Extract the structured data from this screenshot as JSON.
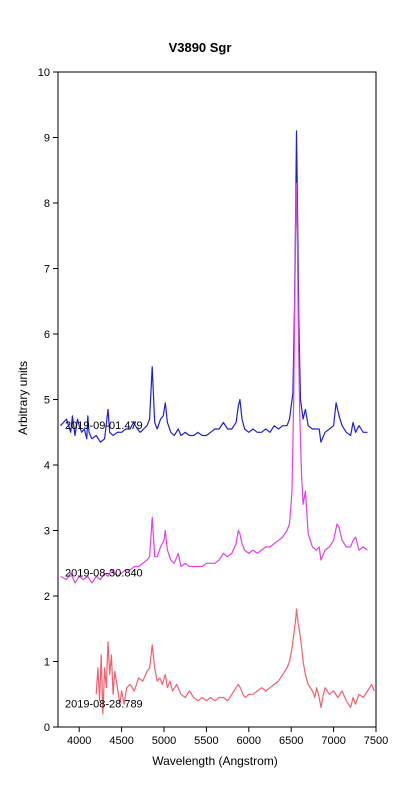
{
  "chart_data": {
    "type": "line",
    "title": "V3890 Sgr",
    "xlabel": "Wavelength (Angstrom)",
    "ylabel": "Arbitrary units",
    "xlim": [
      3750,
      7500
    ],
    "ylim": [
      0,
      10
    ],
    "x_ticks": [
      4000,
      4500,
      5000,
      5500,
      6000,
      6500,
      7000,
      7500
    ],
    "y_ticks": [
      0,
      1,
      2,
      3,
      4,
      5,
      6,
      7,
      8,
      9,
      10
    ],
    "grid": false,
    "legend": "none",
    "series": [
      {
        "name": "2019-09-01.479",
        "color": "#1f1fd6",
        "x": [
          3780,
          3850,
          3900,
          3920,
          3950,
          3980,
          4000,
          4030,
          4060,
          4090,
          4101,
          4115,
          4150,
          4200,
          4250,
          4300,
          4340,
          4360,
          4400,
          4450,
          4500,
          4550,
          4600,
          4640,
          4686,
          4720,
          4760,
          4800,
          4830,
          4861,
          4890,
          4920,
          4960,
          4990,
          5015,
          5040,
          5080,
          5120,
          5169,
          5200,
          5250,
          5300,
          5350,
          5400,
          5450,
          5500,
          5550,
          5600,
          5650,
          5700,
          5750,
          5800,
          5850,
          5876,
          5895,
          5920,
          5950,
          6000,
          6050,
          6100,
          6150,
          6200,
          6250,
          6300,
          6350,
          6400,
          6450,
          6480,
          6520,
          6540,
          6555,
          6563,
          6575,
          6590,
          6610,
          6640,
          6667,
          6700,
          6750,
          6800,
          6830,
          6850,
          6900,
          6950,
          7000,
          7030,
          7065,
          7100,
          7150,
          7200,
          7230,
          7260,
          7300,
          7350,
          7400
        ],
        "y": [
          4.6,
          4.7,
          4.5,
          4.75,
          4.45,
          4.7,
          4.6,
          4.5,
          4.55,
          4.4,
          4.75,
          4.5,
          4.4,
          4.45,
          4.35,
          4.4,
          4.85,
          4.5,
          4.45,
          4.5,
          4.5,
          4.55,
          4.55,
          4.65,
          4.55,
          4.5,
          4.55,
          4.6,
          4.7,
          5.5,
          4.65,
          4.55,
          4.7,
          4.75,
          4.95,
          4.65,
          4.5,
          4.45,
          4.55,
          4.45,
          4.5,
          4.45,
          4.45,
          4.5,
          4.45,
          4.45,
          4.5,
          4.55,
          4.55,
          4.65,
          4.55,
          4.55,
          4.65,
          4.9,
          5.0,
          4.7,
          4.55,
          4.5,
          4.55,
          4.5,
          4.5,
          4.55,
          4.5,
          4.6,
          4.55,
          4.6,
          4.6,
          4.7,
          5.1,
          6.5,
          8.2,
          9.1,
          7.8,
          6.2,
          5.0,
          4.7,
          4.85,
          4.6,
          4.55,
          4.55,
          4.55,
          4.35,
          4.5,
          4.55,
          4.6,
          4.95,
          4.75,
          4.6,
          4.5,
          4.45,
          4.65,
          4.5,
          4.6,
          4.5,
          4.5
        ]
      },
      {
        "name": "2019-08-30.840",
        "color": "#e040e6",
        "x": [
          3780,
          3850,
          3900,
          3950,
          4000,
          4050,
          4100,
          4150,
          4200,
          4250,
          4300,
          4340,
          4380,
          4420,
          4450,
          4500,
          4550,
          4600,
          4650,
          4700,
          4750,
          4800,
          4830,
          4861,
          4890,
          4920,
          4960,
          5000,
          5015,
          5040,
          5080,
          5120,
          5169,
          5200,
          5250,
          5300,
          5350,
          5400,
          5450,
          5500,
          5550,
          5600,
          5650,
          5700,
          5750,
          5800,
          5850,
          5876,
          5895,
          5920,
          5950,
          6000,
          6050,
          6100,
          6150,
          6200,
          6250,
          6300,
          6350,
          6400,
          6450,
          6480,
          6510,
          6530,
          6545,
          6555,
          6563,
          6572,
          6585,
          6600,
          6620,
          6640,
          6667,
          6700,
          6750,
          6800,
          6830,
          6850,
          6900,
          6950,
          7000,
          7040,
          7065,
          7100,
          7150,
          7200,
          7230,
          7260,
          7300,
          7350,
          7400
        ],
        "y": [
          2.3,
          2.25,
          2.35,
          2.2,
          2.3,
          2.25,
          2.3,
          2.2,
          2.3,
          2.25,
          2.35,
          2.3,
          2.4,
          2.35,
          2.3,
          2.35,
          2.4,
          2.4,
          2.45,
          2.45,
          2.5,
          2.55,
          2.6,
          3.2,
          2.6,
          2.6,
          2.75,
          2.85,
          3.0,
          2.7,
          2.55,
          2.5,
          2.65,
          2.45,
          2.5,
          2.45,
          2.45,
          2.45,
          2.45,
          2.5,
          2.5,
          2.5,
          2.55,
          2.65,
          2.6,
          2.65,
          2.8,
          3.0,
          2.95,
          2.8,
          2.7,
          2.65,
          2.7,
          2.65,
          2.7,
          2.75,
          2.75,
          2.8,
          2.85,
          2.9,
          3.0,
          3.1,
          3.6,
          5.0,
          6.8,
          7.9,
          8.3,
          7.5,
          6.0,
          4.8,
          3.9,
          3.4,
          3.6,
          2.95,
          2.75,
          2.7,
          2.75,
          2.55,
          2.7,
          2.75,
          2.85,
          3.1,
          3.05,
          2.85,
          2.75,
          2.75,
          2.85,
          2.9,
          2.7,
          2.75,
          2.7
        ]
      },
      {
        "name": "2019-08-28.789",
        "color": "#f06070",
        "x": [
          4200,
          4220,
          4240,
          4260,
          4280,
          4300,
          4320,
          4340,
          4360,
          4380,
          4400,
          4420,
          4450,
          4480,
          4500,
          4530,
          4560,
          4600,
          4650,
          4700,
          4750,
          4800,
          4830,
          4861,
          4890,
          4920,
          4950,
          4980,
          5015,
          5040,
          5070,
          5100,
          5150,
          5200,
          5250,
          5300,
          5350,
          5400,
          5450,
          5500,
          5550,
          5600,
          5650,
          5700,
          5750,
          5800,
          5850,
          5876,
          5900,
          5930,
          5960,
          6000,
          6050,
          6100,
          6150,
          6200,
          6250,
          6300,
          6350,
          6400,
          6450,
          6480,
          6510,
          6530,
          6550,
          6563,
          6580,
          6600,
          6620,
          6640,
          6667,
          6700,
          6750,
          6780,
          6800,
          6830,
          6850,
          6880,
          6900,
          6950,
          7000,
          7050,
          7100,
          7150,
          7200,
          7230,
          7260,
          7300,
          7350,
          7400,
          7450,
          7480
        ],
        "y": [
          0.5,
          0.9,
          0.4,
          1.1,
          0.2,
          0.9,
          0.6,
          1.3,
          0.8,
          1.1,
          0.5,
          0.85,
          0.6,
          0.35,
          0.55,
          0.35,
          0.6,
          0.65,
          0.55,
          0.75,
          0.7,
          0.85,
          0.9,
          1.25,
          0.9,
          0.7,
          0.75,
          0.65,
          0.8,
          0.6,
          0.7,
          0.55,
          0.65,
          0.5,
          0.45,
          0.55,
          0.45,
          0.4,
          0.45,
          0.4,
          0.45,
          0.4,
          0.45,
          0.45,
          0.4,
          0.5,
          0.6,
          0.65,
          0.6,
          0.5,
          0.45,
          0.5,
          0.5,
          0.55,
          0.6,
          0.55,
          0.6,
          0.65,
          0.7,
          0.8,
          0.9,
          1.0,
          1.2,
          1.4,
          1.6,
          1.8,
          1.6,
          1.45,
          1.25,
          1.0,
          0.8,
          0.65,
          0.55,
          0.45,
          0.6,
          0.45,
          0.3,
          0.5,
          0.6,
          0.5,
          0.55,
          0.45,
          0.55,
          0.4,
          0.3,
          0.45,
          0.35,
          0.5,
          0.45,
          0.55,
          0.65,
          0.55
        ]
      }
    ]
  }
}
